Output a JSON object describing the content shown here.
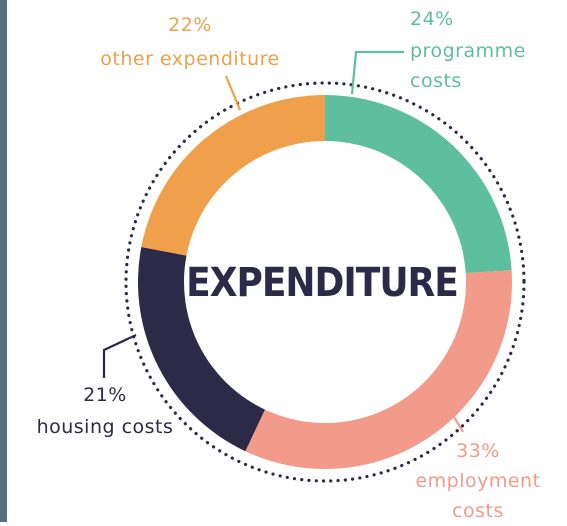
{
  "chart_data": {
    "type": "donut",
    "title": "EXPENDITURE",
    "categories": [
      "programme costs",
      "employment costs",
      "housing costs",
      "other expenditure"
    ],
    "values": [
      24,
      33,
      21,
      22
    ],
    "value_labels": [
      "24%",
      "33%",
      "21%",
      "22%"
    ],
    "colors": [
      "#5dbf9e",
      "#f39b8b",
      "#2d2a47",
      "#f0a04b"
    ]
  }
}
